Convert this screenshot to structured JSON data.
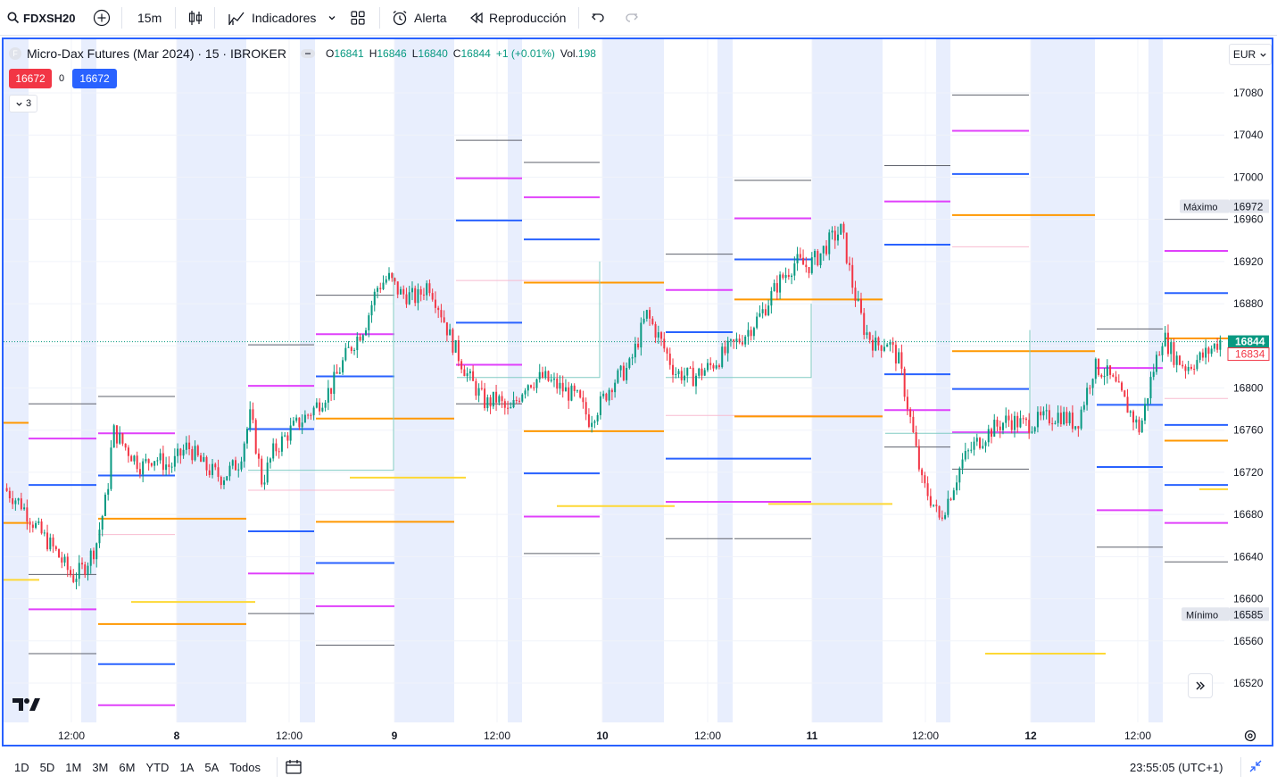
{
  "toolbar": {
    "symbol": "FDXSH20",
    "interval": "15m",
    "indicators_label": "Indicadores",
    "alert_label": "Alerta",
    "replay_label": "Reproducción"
  },
  "legend": {
    "title": "Micro-Dax Futures (Mar 2024) · 15 · IBROKER",
    "ohlc": [
      {
        "k": "O",
        "v": "16841"
      },
      {
        "k": "H",
        "v": "16846"
      },
      {
        "k": "L",
        "v": "16840"
      },
      {
        "k": "C",
        "v": "16844"
      }
    ],
    "change": "+1 (+0.01%)",
    "vol_label": "Vol.",
    "vol_value": "198",
    "sell_price": "16672",
    "spread": "0",
    "buy_price": "16672",
    "collapse_count": "3"
  },
  "currency": "EUR",
  "colors": {
    "up": "#089981",
    "down": "#f23645",
    "session": "#e8eefd",
    "black_level": "#5d606b",
    "magenta_level": "#e040fb",
    "blue_level": "#2962ff",
    "orange_level": "#ff9800",
    "pink_level": "#f8bbd0",
    "yellow_level": "#fdd835",
    "accent": "#2962ff"
  },
  "chart_data": {
    "type": "candlestick",
    "ylim": [
      16500,
      17100
    ],
    "y_ticks": [
      16520,
      16560,
      16600,
      16640,
      16680,
      16720,
      16760,
      16800,
      16840,
      16880,
      16920,
      16960,
      17000,
      17040,
      17080
    ],
    "x_labels": [
      "12:00",
      "8",
      "12:00",
      "9",
      "12:00",
      "10",
      "12:00",
      "11",
      "12:00",
      "12",
      "12:00"
    ],
    "max_label": "Máximo",
    "max_value": 16972,
    "min_label": "Mínimo",
    "min_value": 16585,
    "last_price": 16844,
    "secondary_price": 16834,
    "close_path": [
      [
        0,
        16705
      ],
      [
        0.015,
        16690
      ],
      [
        0.03,
        16665
      ],
      [
        0.045,
        16645
      ],
      [
        0.06,
        16620
      ],
      [
        0.07,
        16630
      ],
      [
        0.08,
        16650
      ],
      [
        0.09,
        16700
      ],
      [
        0.095,
        16760
      ],
      [
        0.105,
        16745
      ],
      [
        0.12,
        16725
      ],
      [
        0.13,
        16735
      ],
      [
        0.145,
        16725
      ],
      [
        0.16,
        16745
      ],
      [
        0.175,
        16725
      ],
      [
        0.19,
        16715
      ],
      [
        0.205,
        16730
      ],
      [
        0.215,
        16775
      ],
      [
        0.225,
        16710
      ],
      [
        0.235,
        16740
      ],
      [
        0.25,
        16760
      ],
      [
        0.26,
        16770
      ],
      [
        0.27,
        16780
      ],
      [
        0.285,
        16800
      ],
      [
        0.3,
        16835
      ],
      [
        0.315,
        16860
      ],
      [
        0.325,
        16895
      ],
      [
        0.335,
        16905
      ],
      [
        0.345,
        16890
      ],
      [
        0.36,
        16885
      ],
      [
        0.37,
        16900
      ],
      [
        0.38,
        16875
      ],
      [
        0.39,
        16845
      ],
      [
        0.405,
        16810
      ],
      [
        0.42,
        16785
      ],
      [
        0.43,
        16790
      ],
      [
        0.44,
        16775
      ],
      [
        0.455,
        16805
      ],
      [
        0.47,
        16810
      ],
      [
        0.485,
        16800
      ],
      [
        0.5,
        16790
      ],
      [
        0.51,
        16770
      ],
      [
        0.52,
        16785
      ],
      [
        0.53,
        16805
      ],
      [
        0.545,
        16820
      ],
      [
        0.56,
        16870
      ],
      [
        0.57,
        16850
      ],
      [
        0.585,
        16815
      ],
      [
        0.6,
        16810
      ],
      [
        0.615,
        16820
      ],
      [
        0.63,
        16835
      ],
      [
        0.645,
        16850
      ],
      [
        0.66,
        16870
      ],
      [
        0.675,
        16900
      ],
      [
        0.69,
        16920
      ],
      [
        0.7,
        16915
      ],
      [
        0.71,
        16925
      ],
      [
        0.72,
        16940
      ],
      [
        0.73,
        16950
      ],
      [
        0.74,
        16895
      ],
      [
        0.75,
        16855
      ],
      [
        0.76,
        16840
      ],
      [
        0.77,
        16845
      ],
      [
        0.78,
        16825
      ],
      [
        0.79,
        16770
      ],
      [
        0.8,
        16710
      ],
      [
        0.81,
        16690
      ],
      [
        0.815,
        16675
      ],
      [
        0.825,
        16700
      ],
      [
        0.835,
        16730
      ],
      [
        0.845,
        16745
      ],
      [
        0.86,
        16760
      ],
      [
        0.875,
        16770
      ],
      [
        0.89,
        16765
      ],
      [
        0.905,
        16770
      ],
      [
        0.92,
        16775
      ],
      [
        0.935,
        16765
      ],
      [
        0.95,
        16820
      ],
      [
        0.96,
        16815
      ],
      [
        0.97,
        16800
      ],
      [
        0.98,
        16780
      ],
      [
        0.99,
        16760
      ],
      [
        1.0,
        16810
      ],
      [
        1.01,
        16850
      ],
      [
        1.02,
        16830
      ],
      [
        1.03,
        16820
      ],
      [
        1.045,
        16830
      ],
      [
        1.06,
        16845
      ]
    ]
  }
}
